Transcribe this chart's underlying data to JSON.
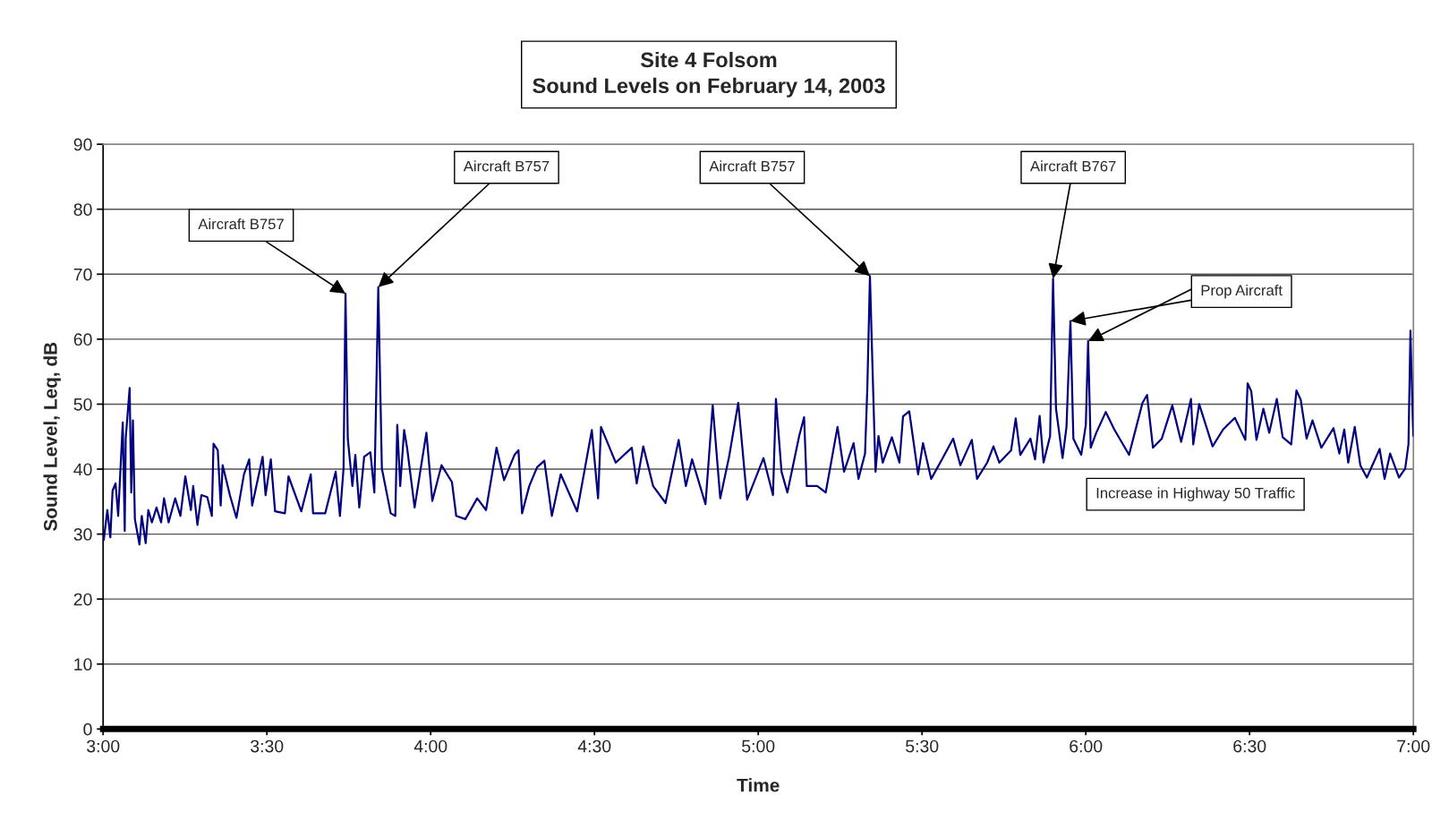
{
  "chart_data": {
    "type": "line",
    "title": "Site 4 Folsom\nSound Levels on February 14, 2003",
    "xlabel": "Time",
    "ylabel": "Sound Level, Leq, dB",
    "xlim": [
      3,
      7
    ],
    "xticks": [
      {
        "value": 3,
        "label": "3:00"
      },
      {
        "value": 3.5,
        "label": "3:30"
      },
      {
        "value": 4,
        "label": "4:00"
      },
      {
        "value": 4.5,
        "label": "4:30"
      },
      {
        "value": 5,
        "label": "5:00"
      },
      {
        "value": 5.5,
        "label": "5:30"
      },
      {
        "value": 6,
        "label": "6:00"
      },
      {
        "value": 6.5,
        "label": "6:30"
      },
      {
        "value": 7,
        "label": "7:00"
      }
    ],
    "ylim": [
      0,
      90
    ],
    "yticks": [
      0,
      10,
      20,
      30,
      40,
      50,
      60,
      70,
      80,
      90
    ],
    "grid": "y",
    "marker": "none",
    "line_style": "solid",
    "series": [
      {
        "color": "#000080",
        "x": [
          3.002,
          3.013,
          3.022,
          3.029,
          3.038,
          3.046,
          3.054,
          3.06,
          3.066,
          3.069,
          3.081,
          3.086,
          3.091,
          3.097,
          3.111,
          3.118,
          3.13,
          3.138,
          3.149,
          3.163,
          3.177,
          3.186,
          3.2,
          3.22,
          3.236,
          3.251,
          3.268,
          3.275,
          3.288,
          3.3,
          3.318,
          3.332,
          3.337,
          3.35,
          3.359,
          3.365,
          3.387,
          3.407,
          3.43,
          3.446,
          3.455,
          3.487,
          3.496,
          3.512,
          3.525,
          3.555,
          3.566,
          3.605,
          3.634,
          3.641,
          3.678,
          3.71,
          3.723,
          3.734,
          3.74,
          3.747,
          3.761,
          3.77,
          3.782,
          3.797,
          3.816,
          3.828,
          3.84,
          3.851,
          3.878,
          3.892,
          3.898,
          3.907,
          3.919,
          3.928,
          3.951,
          3.974,
          3.987,
          4.005,
          4.033,
          4.065,
          4.078,
          4.106,
          4.142,
          4.169,
          4.201,
          4.224,
          4.256,
          4.268,
          4.279,
          4.301,
          4.325,
          4.347,
          4.37,
          4.397,
          4.447,
          4.492,
          4.511,
          4.52,
          4.565,
          4.614,
          4.629,
          4.649,
          4.679,
          4.717,
          4.757,
          4.779,
          4.798,
          4.839,
          4.861,
          4.87,
          4.884,
          4.911,
          4.939,
          4.966,
          5.016,
          5.045,
          5.054,
          5.071,
          5.089,
          5.125,
          5.14,
          5.148,
          5.18,
          5.206,
          5.242,
          5.262,
          5.291,
          5.306,
          5.326,
          5.333,
          5.341,
          5.349,
          5.358,
          5.367,
          5.38,
          5.408,
          5.431,
          5.442,
          5.461,
          5.488,
          5.503,
          5.528,
          5.563,
          5.595,
          5.617,
          5.652,
          5.668,
          5.699,
          5.718,
          5.736,
          5.772,
          5.786,
          5.8,
          5.831,
          5.845,
          5.859,
          5.871,
          5.891,
          5.9,
          5.909,
          5.929,
          5.941,
          5.953,
          5.962,
          5.986,
          6.0,
          6.007,
          6.015,
          6.032,
          6.061,
          6.087,
          6.132,
          6.173,
          6.187,
          6.205,
          6.232,
          6.264,
          6.291,
          6.321,
          6.328,
          6.346,
          6.387,
          6.419,
          6.455,
          6.487,
          6.494,
          6.505,
          6.521,
          6.542,
          6.56,
          6.583,
          6.601,
          6.627,
          6.643,
          6.656,
          6.674,
          6.692,
          6.719,
          6.756,
          6.774,
          6.789,
          6.801,
          6.821,
          6.838,
          6.858,
          6.897,
          6.912,
          6.929,
          6.956,
          6.975,
          6.985,
          6.991,
          6.998,
          7.0
        ],
        "values": [
          29.1,
          33.7,
          29.5,
          36.7,
          37.8,
          32.8,
          41.0,
          47.2,
          30.5,
          44.7,
          52.5,
          36.4,
          47.5,
          32.3,
          28.4,
          32.8,
          28.6,
          33.7,
          31.8,
          34.1,
          31.8,
          35.5,
          31.8,
          35.5,
          32.8,
          38.9,
          33.7,
          37.4,
          31.4,
          36.0,
          35.7,
          32.8,
          43.9,
          42.9,
          34.4,
          40.6,
          36.0,
          32.5,
          39.2,
          41.5,
          34.4,
          41.9,
          36.0,
          41.5,
          33.5,
          33.2,
          38.9,
          33.5,
          39.2,
          33.2,
          33.2,
          39.6,
          32.8,
          40.1,
          67.0,
          44.7,
          37.4,
          42.2,
          34.1,
          41.9,
          42.6,
          36.4,
          68.0,
          40.1,
          33.2,
          32.8,
          46.8,
          37.4,
          46.0,
          43.3,
          34.1,
          41.5,
          45.6,
          35.1,
          40.6,
          38.0,
          32.8,
          32.3,
          35.5,
          33.7,
          43.3,
          38.3,
          42.2,
          42.9,
          33.2,
          37.4,
          40.3,
          41.3,
          32.8,
          39.2,
          33.5,
          46.0,
          35.5,
          46.5,
          41.0,
          43.3,
          37.8,
          43.5,
          37.4,
          34.8,
          44.5,
          37.4,
          41.5,
          34.6,
          49.8,
          44.2,
          35.5,
          41.9,
          50.2,
          35.3,
          41.7,
          36.0,
          50.8,
          39.6,
          36.4,
          45.1,
          48.0,
          37.4,
          37.4,
          36.4,
          46.5,
          39.6,
          44.0,
          38.5,
          42.4,
          52.5,
          69.7,
          55.3,
          39.6,
          45.1,
          41.0,
          44.9,
          41.0,
          48.1,
          48.9,
          39.2,
          44.0,
          38.5,
          41.7,
          44.7,
          40.6,
          44.5,
          38.5,
          41.0,
          43.5,
          41.0,
          42.9,
          47.8,
          42.2,
          44.7,
          41.5,
          48.2,
          41.0,
          45.1,
          69.3,
          49.3,
          41.7,
          46.5,
          62.8,
          44.7,
          42.2,
          46.8,
          59.7,
          43.3,
          45.6,
          48.8,
          46.1,
          42.2,
          50.2,
          51.4,
          43.3,
          44.7,
          49.8,
          44.2,
          50.8,
          43.8,
          50.0,
          43.5,
          46.1,
          47.9,
          44.5,
          53.2,
          52.0,
          44.5,
          49.3,
          45.6,
          50.8,
          44.9,
          43.8,
          52.1,
          50.7,
          44.7,
          47.5,
          43.3,
          46.3,
          42.4,
          46.1,
          41.0,
          46.5,
          40.6,
          38.7,
          43.1,
          38.5,
          42.4,
          38.7,
          40.1,
          43.8,
          61.3,
          47.9,
          45.1
        ]
      }
    ],
    "annotations": [
      {
        "text": "Aircraft B757",
        "x": 3.74,
        "y": 67.0
      },
      {
        "text": "Aircraft B757",
        "x": 3.84,
        "y": 68.0
      },
      {
        "text": "Aircraft B757",
        "x": 5.341,
        "y": 69.7
      },
      {
        "text": "Aircraft B767",
        "x": 5.9,
        "y": 69.3
      },
      {
        "text": "Prop Aircraft",
        "x": 5.953,
        "y": 62.8
      },
      "Increase in Highway 50 Traffic"
    ]
  }
}
